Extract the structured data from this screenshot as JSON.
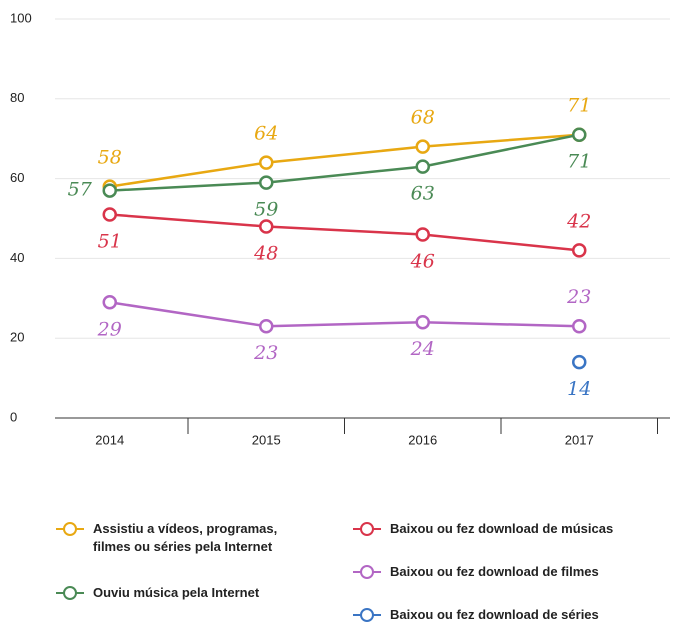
{
  "chart_data": {
    "type": "line",
    "categories": [
      "2014",
      "2015",
      "2016",
      "2017"
    ],
    "series": [
      {
        "name": "Assistiu a vídeos, programas, filmes ou séries pela Internet",
        "color": "#e8a812",
        "values": [
          58,
          64,
          68,
          71
        ]
      },
      {
        "name": "Ouviu música pela Internet",
        "color": "#4a8a55",
        "values": [
          57,
          59,
          63,
          71
        ]
      },
      {
        "name": "Baixou ou fez download de músicas",
        "color": "#d9344a",
        "values": [
          51,
          48,
          46,
          42
        ]
      },
      {
        "name": "Baixou ou fez download de filmes",
        "color": "#b266c4",
        "values": [
          29,
          23,
          24,
          23
        ]
      },
      {
        "name": "Baixou ou fez download de séries",
        "color": "#3a75c4",
        "values": [
          null,
          null,
          null,
          14
        ]
      }
    ],
    "ylim": [
      0,
      100
    ],
    "yticks": [
      0,
      20,
      40,
      60,
      80,
      100
    ],
    "grid": true,
    "legend": "bottom"
  }
}
